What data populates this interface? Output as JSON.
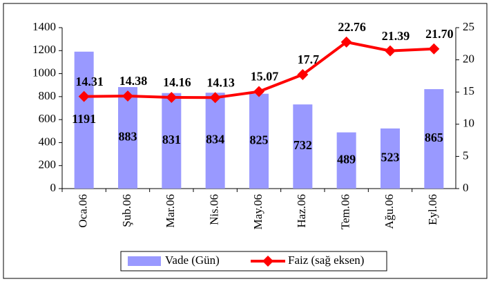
{
  "chart_data": {
    "type": "bar",
    "categories": [
      "Oca.06",
      "Şub.06",
      "Mar.06",
      "Nis.06",
      "May.06",
      "Haz.06",
      "Tem.06",
      "Ağu.06",
      "Eyl.06"
    ],
    "series": [
      {
        "name": "Vade (Gün)",
        "type": "bar",
        "color": "#9999ff",
        "values": [
          1191,
          883,
          831,
          834,
          825,
          732,
          489,
          523,
          865
        ]
      },
      {
        "name": "Faiz (sağ eksen)",
        "type": "line",
        "axis": "y2",
        "color": "#ff0000",
        "values": [
          14.31,
          14.38,
          14.16,
          14.13,
          15.07,
          17.7,
          22.76,
          21.39,
          21.7
        ],
        "value_labels": [
          "14.31",
          "14.38",
          "14.16",
          "14.13",
          "15.07",
          "17.7",
          "22.76",
          "21.39",
          "21.70"
        ]
      }
    ],
    "ylim": [
      0,
      1400
    ],
    "yticks": [
      0,
      200,
      400,
      600,
      800,
      1000,
      1200,
      1400
    ],
    "y2lim": [
      0,
      25
    ],
    "y2ticks": [
      0,
      5,
      10,
      15,
      20,
      25
    ],
    "legend": "bottom"
  }
}
